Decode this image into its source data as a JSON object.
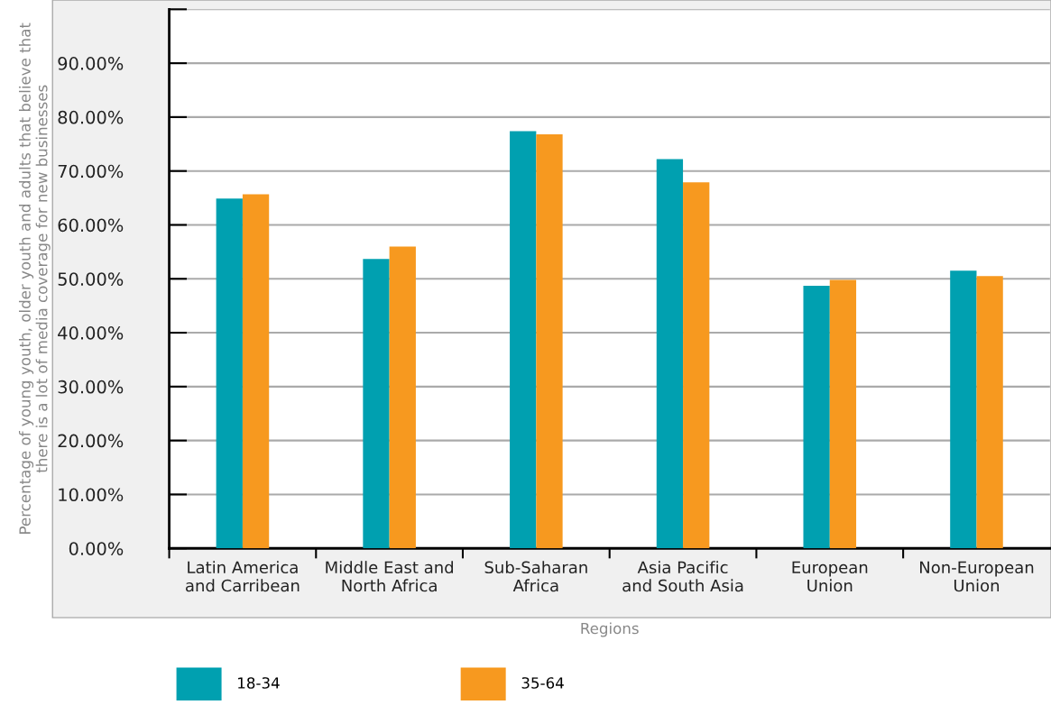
{
  "chart_data": {
    "type": "bar",
    "xlabel": "Regions",
    "ylabel": "Percentage of young youth, older youth and adults that believe that\nthere is a lot of media coverage for new businesses",
    "categories": [
      "Latin America\nand Carribean",
      "Middle East and\nNorth Africa",
      "Sub-Saharan\nAfrica",
      "Asia Pacific\nand South Asia",
      "European\nUnion",
      "Non-European\nUnion"
    ],
    "series": [
      {
        "name": "18-34",
        "color": "#00a0b0",
        "values": [
          64.9,
          53.7,
          77.4,
          72.2,
          48.7,
          51.5
        ]
      },
      {
        "name": "35-64",
        "color": "#f7991f",
        "values": [
          65.7,
          56.0,
          76.8,
          67.9,
          49.8,
          50.5
        ]
      }
    ],
    "ylim": [
      0,
      100
    ],
    "yticks": [
      {
        "value": 0,
        "label": "0.00%"
      },
      {
        "value": 10,
        "label": "10.00%"
      },
      {
        "value": 20,
        "label": "20.00%"
      },
      {
        "value": 30,
        "label": "30.00%"
      },
      {
        "value": 40,
        "label": "40.00%"
      },
      {
        "value": 50,
        "label": "50.00%"
      },
      {
        "value": 60,
        "label": "60.00%"
      },
      {
        "value": 70,
        "label": "70.00%"
      },
      {
        "value": 80,
        "label": "80.00%"
      },
      {
        "value": 90,
        "label": "90.00%"
      },
      {
        "value": 100,
        "label": null
      }
    ],
    "grid": "y",
    "legend": "bottom"
  }
}
